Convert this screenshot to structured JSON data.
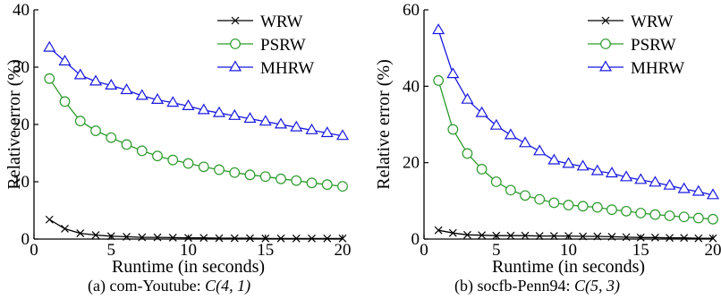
{
  "chart_data": [
    {
      "type": "line",
      "xlabel": "Runtime (in seconds)",
      "ylabel": "Relative error (%)",
      "xlim": [
        0,
        20
      ],
      "ylim": [
        0,
        40
      ],
      "xticks": [
        0,
        5,
        10,
        15,
        20
      ],
      "yticks": [
        0,
        10,
        20,
        30,
        40
      ],
      "xtick_labels": [
        "0",
        "5",
        "10",
        "15",
        "20"
      ],
      "ytick_labels": [
        "0",
        "10",
        "20",
        "30",
        "40"
      ],
      "legend_position": "top-right",
      "caption_prefix": "(a) com-Youtube: ",
      "caption_math": "C(4, 1)",
      "x": [
        1,
        2,
        3,
        4,
        5,
        6,
        7,
        8,
        9,
        10,
        11,
        12,
        13,
        14,
        15,
        16,
        17,
        18,
        19,
        20
      ],
      "series": [
        {
          "name": "WRW",
          "color": "#000000",
          "marker": "x",
          "values": [
            3.4,
            1.8,
            1.0,
            0.7,
            0.5,
            0.4,
            0.3,
            0.3,
            0.25,
            0.2,
            0.2,
            0.15,
            0.15,
            0.15,
            0.1,
            0.1,
            0.1,
            0.1,
            0.1,
            0.1
          ]
        },
        {
          "name": "PSRW",
          "color": "#2a9a2a",
          "marker": "circle",
          "values": [
            28.0,
            24.0,
            20.6,
            18.9,
            17.7,
            16.5,
            15.4,
            14.5,
            13.8,
            13.2,
            12.6,
            12.1,
            11.6,
            11.2,
            10.9,
            10.5,
            10.2,
            9.8,
            9.5,
            9.2
          ]
        },
        {
          "name": "MHRW",
          "color": "#1818e0",
          "marker": "triangle",
          "values": [
            33.4,
            31.0,
            28.6,
            27.5,
            26.8,
            26.0,
            25.0,
            24.3,
            23.8,
            23.2,
            22.5,
            22.0,
            21.5,
            21.0,
            20.5,
            20.0,
            19.5,
            19.0,
            18.5,
            18.0
          ]
        }
      ]
    },
    {
      "type": "line",
      "xlabel": "Runtime (in seconds)",
      "ylabel": "Relative error (%)",
      "xlim": [
        0,
        20
      ],
      "ylim": [
        0,
        60
      ],
      "xticks": [
        0,
        5,
        10,
        15,
        20
      ],
      "yticks": [
        0,
        20,
        40,
        60
      ],
      "xtick_labels": [
        "0",
        "5",
        "10",
        "15",
        "20"
      ],
      "ytick_labels": [
        "0",
        "20",
        "40",
        "60"
      ],
      "legend_position": "top-right",
      "caption_prefix": "(b) socfb-Penn94: ",
      "caption_math": "C(5, 3)",
      "x": [
        1,
        2,
        3,
        4,
        5,
        6,
        7,
        8,
        9,
        10,
        11,
        12,
        13,
        14,
        15,
        16,
        17,
        18,
        19,
        20
      ],
      "series": [
        {
          "name": "WRW",
          "color": "#000000",
          "marker": "x",
          "values": [
            2.3,
            1.6,
            1.1,
            1.0,
            0.9,
            0.9,
            0.9,
            0.8,
            0.8,
            0.8,
            0.7,
            0.7,
            0.6,
            0.5,
            0.4,
            0.4,
            0.3,
            0.3,
            0.2,
            0.2
          ]
        },
        {
          "name": "PSRW",
          "color": "#2a9a2a",
          "marker": "circle",
          "values": [
            41.5,
            28.7,
            22.4,
            18.3,
            15.0,
            12.8,
            11.4,
            10.4,
            9.5,
            8.9,
            8.6,
            8.3,
            7.7,
            7.3,
            6.8,
            6.4,
            6.1,
            5.8,
            5.5,
            5.2
          ]
        },
        {
          "name": "MHRW",
          "color": "#1818e0",
          "marker": "triangle",
          "values": [
            54.7,
            43.2,
            36.5,
            33.0,
            29.7,
            27.2,
            25.1,
            23.0,
            20.6,
            19.7,
            19.0,
            17.8,
            17.2,
            16.2,
            15.5,
            14.8,
            14.0,
            13.1,
            12.4,
            11.5
          ]
        }
      ]
    }
  ]
}
